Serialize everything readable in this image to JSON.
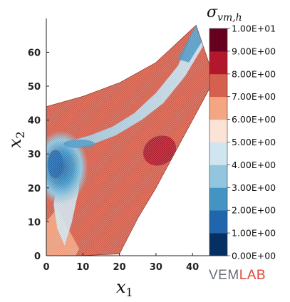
{
  "chart_data": {
    "type": "heatmap",
    "title": "",
    "xlabel": {
      "main": "x",
      "sub": "1"
    },
    "ylabel": {
      "main": "x",
      "sub": "2"
    },
    "xlim": [
      0,
      46
    ],
    "ylim": [
      0,
      70
    ],
    "x_ticks": [
      "0",
      "10",
      "20",
      "30",
      "40"
    ],
    "y_ticks": [
      "0",
      "10",
      "20",
      "30",
      "40",
      "50",
      "60"
    ],
    "colorbar": {
      "title": {
        "main": "σ",
        "sub": "vm,h"
      },
      "min": 0,
      "max": 10,
      "labels": [
        "1.00E+01",
        "9.00E+00",
        "8.00E+00",
        "7.00E+00",
        "6.00E+00",
        "5.00E+00",
        "4.00E+00",
        "3.00E+00",
        "2.00E+00",
        "1.00E+00",
        "0.00E+00"
      ],
      "bins": [
        "#053061",
        "#2166ac",
        "#4393c3",
        "#92c5de",
        "#d1e5f0",
        "#fbe3d6",
        "#f4a582",
        "#d6604d",
        "#b2182b",
        "#67001f"
      ]
    },
    "domain_outline": [
      [
        0,
        0
      ],
      [
        0,
        44
      ],
      [
        10,
        47
      ],
      [
        20,
        51
      ],
      [
        30,
        57
      ],
      [
        41,
        68
      ],
      [
        46,
        52
      ],
      [
        40,
        40
      ],
      [
        35,
        30
      ],
      [
        30,
        20
      ],
      [
        25,
        11
      ],
      [
        20,
        0.5
      ],
      [
        8,
        0
      ]
    ],
    "field_regions": [
      {
        "name": "background",
        "value": 7.2
      },
      {
        "name": "left-hot-spot",
        "value": 1.5,
        "center": [
          4,
          26
        ]
      },
      {
        "name": "central-band",
        "value": 4.5
      },
      {
        "name": "lower-right-red",
        "value": 8.5,
        "center": [
          31,
          31
        ]
      },
      {
        "name": "upper-red",
        "value": 8.3,
        "center": [
          13,
          50
        ]
      }
    ]
  },
  "logo": {
    "part1": "VEM",
    "part2": "LAB"
  }
}
